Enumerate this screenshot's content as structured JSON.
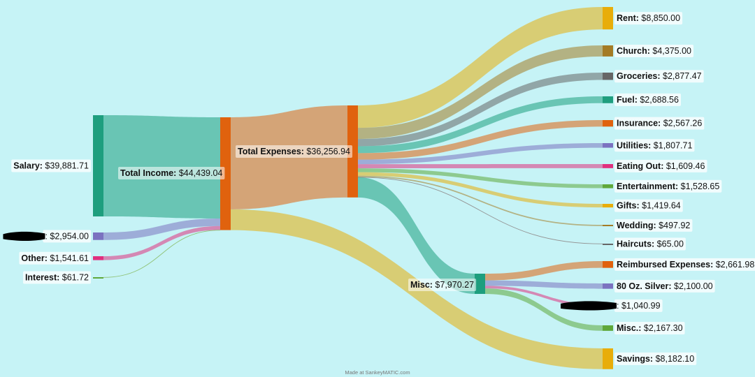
{
  "chart_data": {
    "type": "sankey",
    "value_prefix": "$",
    "nodes": [
      {
        "id": "salary",
        "name": "Salary",
        "value": "$39,881.71",
        "color": "#1e9e7e"
      },
      {
        "id": "redacted_income",
        "name": "",
        "value": "$2,954.00",
        "color": "#7b72c0",
        "redacted": true
      },
      {
        "id": "other",
        "name": "Other",
        "value": "$1,541.61",
        "color": "#e0307e"
      },
      {
        "id": "interest",
        "name": "Interest",
        "value": "$61.72",
        "color": "#5fa83a"
      },
      {
        "id": "total_income",
        "name": "Total Income",
        "value": "$44,439.04",
        "color": "#e0620e"
      },
      {
        "id": "total_expenses",
        "name": "Total Expenses",
        "value": "$36,256.94",
        "color": "#e0620e"
      },
      {
        "id": "misc",
        "name": "Misc",
        "value": "$7,970.27",
        "color": "#1e9e7e"
      },
      {
        "id": "rent",
        "name": "Rent",
        "value": "$8,850.00",
        "color": "#e8ad0a"
      },
      {
        "id": "church",
        "name": "Church",
        "value": "$4,375.00",
        "color": "#a47b25"
      },
      {
        "id": "groceries",
        "name": "Groceries",
        "value": "$2,877.47",
        "color": "#666666"
      },
      {
        "id": "fuel",
        "name": "Fuel",
        "value": "$2,688.56",
        "color": "#1e9e7e"
      },
      {
        "id": "insurance",
        "name": "Insurance",
        "value": "$2,567.26",
        "color": "#e0620e"
      },
      {
        "id": "utilities",
        "name": "Utilities",
        "value": "$1,807.71",
        "color": "#7b72c0"
      },
      {
        "id": "eating_out",
        "name": "Eating Out",
        "value": "$1,609.46",
        "color": "#e0307e"
      },
      {
        "id": "entertainment",
        "name": "Entertainment",
        "value": "$1,528.65",
        "color": "#5fa83a"
      },
      {
        "id": "gifts",
        "name": "Gifts",
        "value": "$1,419.64",
        "color": "#e8ad0a"
      },
      {
        "id": "wedding",
        "name": "Wedding",
        "value": "$497.92",
        "color": "#a47b25"
      },
      {
        "id": "haircuts",
        "name": "Haircuts",
        "value": "$65.00",
        "color": "#666666"
      },
      {
        "id": "reimbursed",
        "name": "Reimbursed Expenses",
        "value": "$2,661.98",
        "color": "#e0620e"
      },
      {
        "id": "silver",
        "name": "80 Oz. Silver",
        "value": "$2,100.00",
        "color": "#7b72c0"
      },
      {
        "id": "redacted_misc",
        "name": "",
        "value": "$1,040.99",
        "color": "#e0307e",
        "redacted": true
      },
      {
        "id": "misc_other",
        "name": "Misc.",
        "value": "$2,167.30",
        "color": "#5fa83a"
      },
      {
        "id": "savings",
        "name": "Savings",
        "value": "$8,182.10",
        "color": "#e8ad0a"
      }
    ],
    "flows": [
      {
        "from": "salary",
        "to": "total_income",
        "amount": 39881.71
      },
      {
        "from": "redacted_income",
        "to": "total_income",
        "amount": 2954.0
      },
      {
        "from": "other",
        "to": "total_income",
        "amount": 1541.61
      },
      {
        "from": "interest",
        "to": "total_income",
        "amount": 61.72
      },
      {
        "from": "total_income",
        "to": "total_expenses",
        "amount": 36256.94
      },
      {
        "from": "total_income",
        "to": "savings",
        "amount": 8182.1
      },
      {
        "from": "total_expenses",
        "to": "rent",
        "amount": 8850.0
      },
      {
        "from": "total_expenses",
        "to": "church",
        "amount": 4375.0
      },
      {
        "from": "total_expenses",
        "to": "groceries",
        "amount": 2877.47
      },
      {
        "from": "total_expenses",
        "to": "fuel",
        "amount": 2688.56
      },
      {
        "from": "total_expenses",
        "to": "insurance",
        "amount": 2567.26
      },
      {
        "from": "total_expenses",
        "to": "utilities",
        "amount": 1807.71
      },
      {
        "from": "total_expenses",
        "to": "eating_out",
        "amount": 1609.46
      },
      {
        "from": "total_expenses",
        "to": "entertainment",
        "amount": 1528.65
      },
      {
        "from": "total_expenses",
        "to": "gifts",
        "amount": 1419.64
      },
      {
        "from": "total_expenses",
        "to": "wedding",
        "amount": 497.92
      },
      {
        "from": "total_expenses",
        "to": "haircuts",
        "amount": 65.0
      },
      {
        "from": "total_expenses",
        "to": "misc",
        "amount": 7970.27
      },
      {
        "from": "misc",
        "to": "reimbursed",
        "amount": 2661.98
      },
      {
        "from": "misc",
        "to": "silver",
        "amount": 2100.0
      },
      {
        "from": "misc",
        "to": "redacted_misc",
        "amount": 1040.99
      },
      {
        "from": "misc",
        "to": "misc_other",
        "amount": 2167.3
      }
    ]
  },
  "footer": "Made at SankeyMATIC.com",
  "colors": {
    "background": "#c6f3f6",
    "label_box": "#ffffff"
  }
}
